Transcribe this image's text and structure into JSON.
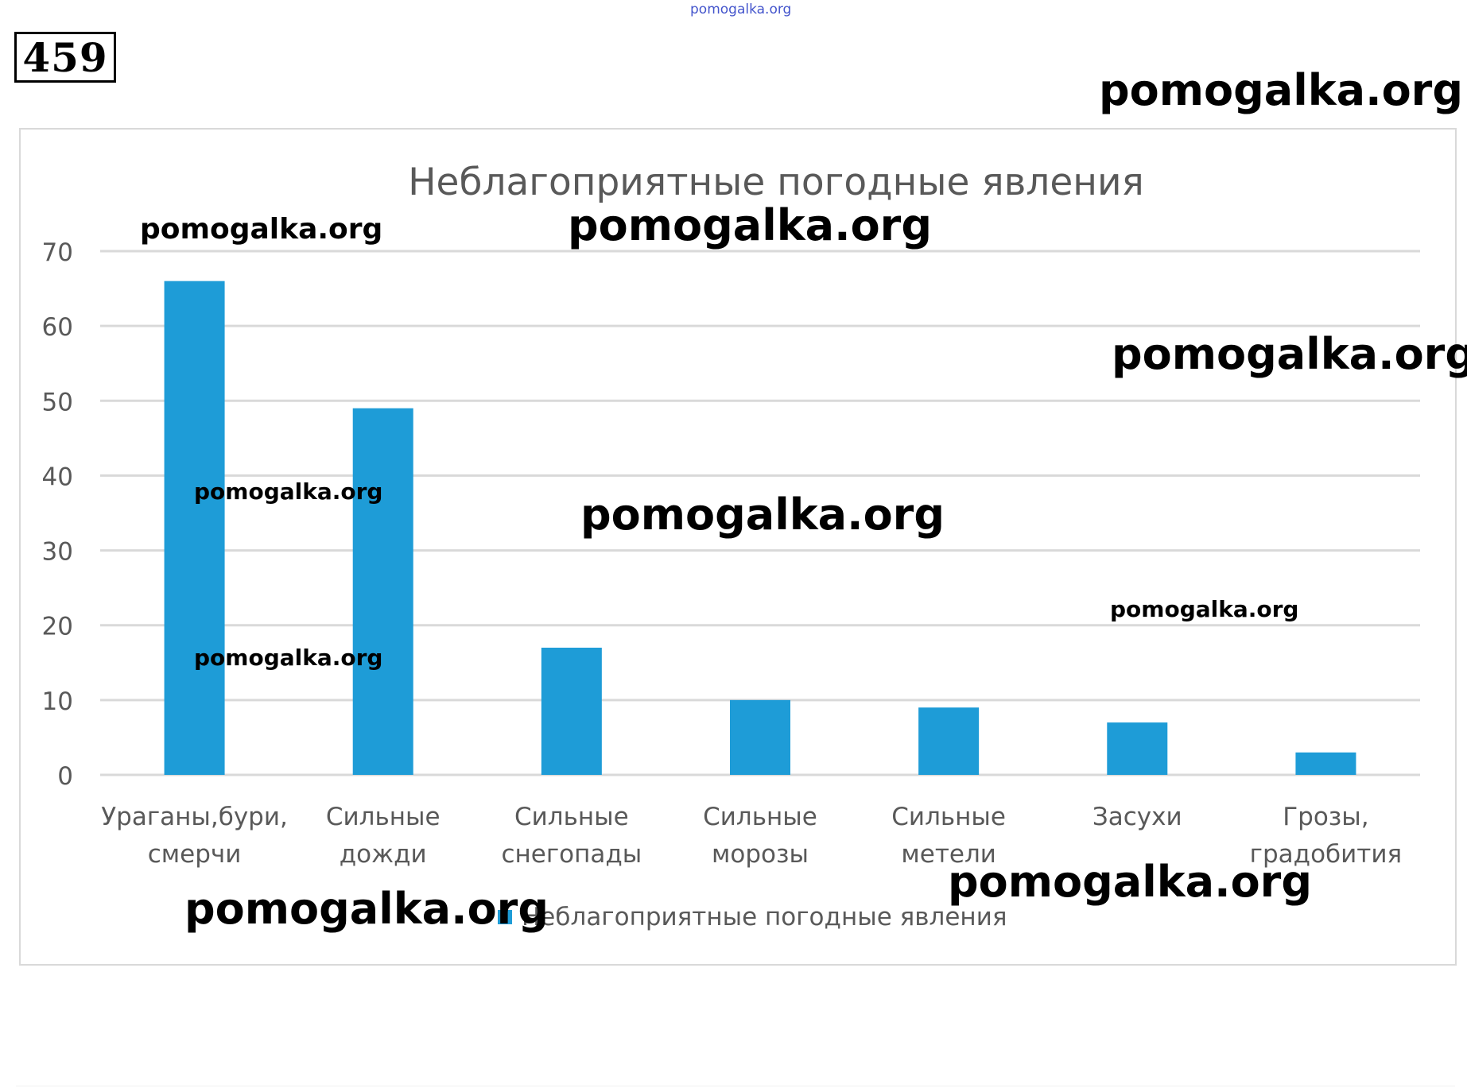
{
  "header": {
    "watermark_top": "pomogalka.org",
    "problem_number": "459"
  },
  "watermarks": [
    "pomogalka.org",
    "pomogalka.org",
    "pomogalka.org",
    "pomogalka.org",
    "pomogalka.org",
    "pomogalka.org",
    "pomogalka.org",
    "pomogalka.org",
    "pomogalka.org",
    "pomogalka.org"
  ],
  "colors": {
    "bar": "#1e9cd7",
    "grid": "#d9d9d9",
    "text": "#595959"
  },
  "chart_data": {
    "type": "bar",
    "title": "Неблагоприятные погодные явления",
    "categories": [
      [
        "Ураганы,бури,",
        "смерчи"
      ],
      [
        "Сильные",
        "дожди"
      ],
      [
        "Сильные",
        "снегопады"
      ],
      [
        "Сильные",
        "морозы"
      ],
      [
        "Сильные",
        "метели"
      ],
      [
        "Засухи"
      ],
      [
        "Грозы,",
        "градобития"
      ]
    ],
    "series": [
      {
        "name": "Неблагоприятные погодные явления",
        "values": [
          66,
          49,
          17,
          10,
          9,
          7,
          3
        ]
      }
    ],
    "y_ticks": [
      "0",
      "10",
      "20",
      "30",
      "40",
      "50",
      "60",
      "70"
    ],
    "ylim": [
      0,
      70
    ],
    "grid": true,
    "legend": "bottom"
  }
}
